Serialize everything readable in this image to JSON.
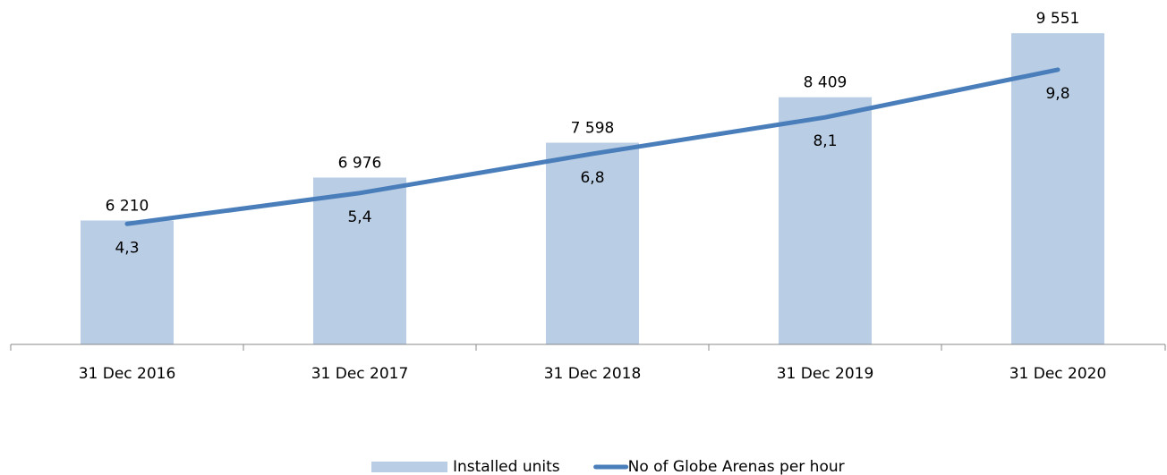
{
  "chart_data": {
    "type": "bar-line",
    "categories": [
      "31 Dec 2016",
      "31 Dec 2017",
      "31 Dec 2018",
      "31 Dec 2019",
      "31 Dec 2020"
    ],
    "series": [
      {
        "name": "Installed units",
        "type": "bar",
        "color": "#b9cde5",
        "values": [
          6210,
          6976,
          7598,
          8409,
          9551
        ],
        "value_labels": [
          "6 210",
          "6 976",
          "7 598",
          "8 409",
          "9 551"
        ]
      },
      {
        "name": "No of Globe Arenas per hour",
        "type": "line",
        "axis": "y2",
        "color": "#4a7ebb",
        "values": [
          4.3,
          5.4,
          6.8,
          8.1,
          9.8
        ],
        "value_labels": [
          "4,3",
          "5,4",
          "6,8",
          "8,1",
          "9,8"
        ]
      }
    ],
    "ylim": [
      4000,
      10000
    ],
    "y2lim": [
      0,
      12
    ],
    "grid": false,
    "legend": "bottom"
  }
}
